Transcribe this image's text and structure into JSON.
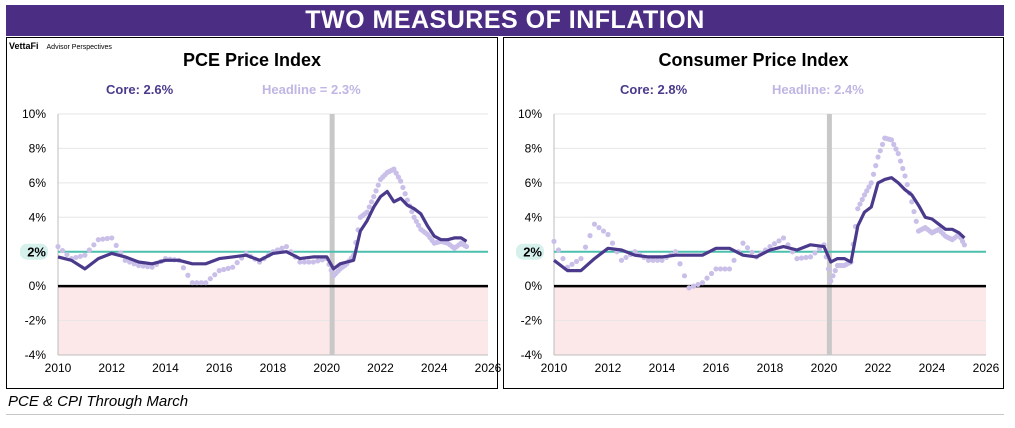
{
  "banner_title": "TWO MEASURES OF INFLATION",
  "brand": {
    "name": "VettaFi",
    "sub": "Advisor Perspectives"
  },
  "footnote": "PCE & CPI Through March",
  "colors": {
    "core": "#4b3a8c",
    "headline": "#c9bfe8",
    "target": "#4dbfae",
    "shade": "#fce8e8",
    "recession": "#c8c8c8",
    "zero": "#000000",
    "banner": "#4b2e84"
  },
  "chart_data": [
    {
      "type": "line",
      "title": "PCE Price Index",
      "core_label": "Core: 2.6%",
      "headline_label": "Headline = 2.3%",
      "ylim": [
        -4,
        10
      ],
      "xlim": [
        2010,
        2026
      ],
      "y_ticks": [
        "10%",
        "8%",
        "6%",
        "4%",
        "2%",
        "0%",
        "-2%",
        "-4%"
      ],
      "x_ticks": [
        "2010",
        "2012",
        "2014",
        "2016",
        "2018",
        "2020",
        "2022",
        "2024",
        "2026"
      ],
      "target_label": "2%",
      "target": 2,
      "recession_x": 2020.2,
      "series": [
        {
          "name": "Core",
          "style": "line",
          "x": [
            2010,
            2010.5,
            2011,
            2011.5,
            2012,
            2012.5,
            2013,
            2013.5,
            2014,
            2014.5,
            2015,
            2015.5,
            2016,
            2016.5,
            2017,
            2017.5,
            2018,
            2018.5,
            2019,
            2019.5,
            2020,
            2020.25,
            2020.5,
            2020.75,
            2021,
            2021.25,
            2021.5,
            2021.75,
            2022,
            2022.25,
            2022.5,
            2022.75,
            2023,
            2023.25,
            2023.5,
            2023.75,
            2024,
            2024.25,
            2024.5,
            2024.75,
            2025,
            2025.2
          ],
          "y": [
            1.7,
            1.5,
            1.0,
            1.6,
            1.9,
            1.7,
            1.4,
            1.3,
            1.5,
            1.5,
            1.3,
            1.3,
            1.6,
            1.7,
            1.8,
            1.5,
            1.9,
            2.0,
            1.6,
            1.7,
            1.7,
            1.0,
            1.3,
            1.4,
            1.5,
            3.2,
            3.8,
            4.6,
            5.2,
            5.5,
            4.9,
            5.1,
            4.7,
            4.5,
            4.2,
            3.5,
            2.9,
            2.7,
            2.7,
            2.8,
            2.8,
            2.6
          ]
        },
        {
          "name": "Headline",
          "style": "dots",
          "x": [
            2010,
            2010.5,
            2011,
            2011.5,
            2012,
            2012.5,
            2013,
            2013.5,
            2014,
            2014.5,
            2015,
            2015.5,
            2016,
            2016.5,
            2017,
            2017.5,
            2018,
            2018.5,
            2019,
            2019.5,
            2020,
            2020.25,
            2020.5,
            2020.75,
            2021,
            2021.25,
            2021.5,
            2021.75,
            2022,
            2022.25,
            2022.5,
            2022.75,
            2023,
            2023.25,
            2023.5,
            2023.75,
            2024,
            2024.25,
            2024.5,
            2024.75,
            2025,
            2025.2
          ],
          "y": [
            2.3,
            1.6,
            1.8,
            2.7,
            2.8,
            1.5,
            1.2,
            1.1,
            1.6,
            1.5,
            0.2,
            0.2,
            0.9,
            1.1,
            1.9,
            1.4,
            2.0,
            2.3,
            1.4,
            1.4,
            1.6,
            0.6,
            1.0,
            1.3,
            1.8,
            4.0,
            4.3,
            5.2,
            6.2,
            6.6,
            6.8,
            6.1,
            5.0,
            4.0,
            3.3,
            3.0,
            2.5,
            2.6,
            2.5,
            2.2,
            2.5,
            2.3
          ]
        }
      ]
    },
    {
      "type": "line",
      "title": "Consumer Price Index",
      "core_label": "Core: 2.8%",
      "headline_label": "Headline: 2.4%",
      "ylim": [
        -4,
        10
      ],
      "xlim": [
        2010,
        2026
      ],
      "y_ticks": [
        "10%",
        "8%",
        "6%",
        "4%",
        "2%",
        "0%",
        "-2%",
        "-4%"
      ],
      "x_ticks": [
        "2010",
        "2012",
        "2014",
        "2016",
        "2018",
        "2020",
        "2022",
        "2024",
        "2026"
      ],
      "target_label": "2%",
      "target": 2,
      "recession_x": 2020.2,
      "series": [
        {
          "name": "Core",
          "style": "line",
          "x": [
            2010,
            2010.5,
            2011,
            2011.5,
            2012,
            2012.5,
            2013,
            2013.5,
            2014,
            2014.5,
            2015,
            2015.5,
            2016,
            2016.5,
            2017,
            2017.5,
            2018,
            2018.5,
            2019,
            2019.5,
            2020,
            2020.25,
            2020.5,
            2020.75,
            2021,
            2021.25,
            2021.5,
            2021.75,
            2022,
            2022.25,
            2022.5,
            2022.75,
            2023,
            2023.25,
            2023.5,
            2023.75,
            2024,
            2024.25,
            2024.5,
            2024.75,
            2025,
            2025.2
          ],
          "y": [
            1.5,
            0.9,
            0.9,
            1.6,
            2.2,
            2.1,
            1.8,
            1.7,
            1.7,
            1.8,
            1.8,
            1.8,
            2.2,
            2.2,
            1.8,
            1.7,
            2.1,
            2.3,
            2.1,
            2.4,
            2.3,
            1.4,
            1.6,
            1.6,
            1.4,
            3.5,
            4.3,
            4.6,
            6.0,
            6.2,
            6.3,
            6.0,
            5.6,
            5.3,
            4.7,
            4.0,
            3.9,
            3.6,
            3.3,
            3.3,
            3.1,
            2.8
          ]
        },
        {
          "name": "Headline",
          "style": "dots",
          "x": [
            2010,
            2010.5,
            2011,
            2011.5,
            2012,
            2012.5,
            2013,
            2013.5,
            2014,
            2014.5,
            2015,
            2015.5,
            2016,
            2016.5,
            2017,
            2017.5,
            2018,
            2018.5,
            2019,
            2019.5,
            2020,
            2020.25,
            2020.5,
            2020.75,
            2021,
            2021.25,
            2021.5,
            2021.75,
            2022,
            2022.25,
            2022.5,
            2022.75,
            2023,
            2023.25,
            2023.5,
            2023.75,
            2024,
            2024.25,
            2024.5,
            2024.75,
            2025,
            2025.2
          ],
          "y": [
            2.6,
            1.1,
            1.6,
            3.6,
            3.0,
            1.5,
            2.0,
            1.5,
            1.5,
            2.0,
            -0.1,
            0.2,
            1.0,
            1.0,
            2.5,
            1.7,
            2.3,
            2.8,
            1.6,
            1.7,
            2.4,
            0.3,
            1.2,
            1.2,
            1.4,
            4.5,
            5.3,
            6.0,
            7.5,
            8.6,
            8.5,
            7.7,
            6.4,
            4.9,
            3.2,
            3.4,
            3.1,
            3.3,
            2.9,
            2.7,
            3.0,
            2.4
          ]
        }
      ]
    }
  ]
}
